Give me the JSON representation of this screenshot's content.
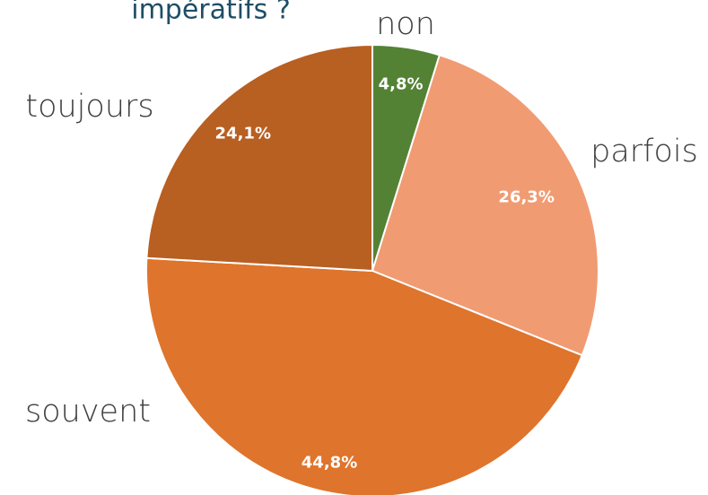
{
  "chart_data": {
    "type": "pie",
    "title": "impératifs ?",
    "categories": [
      "non",
      "parfois",
      "souvent",
      "toujours"
    ],
    "values": [
      4.8,
      26.3,
      44.8,
      24.1
    ],
    "value_labels": [
      "4,8%",
      "26,3%",
      "44,8%",
      "24,1%"
    ],
    "colors": [
      "#548235",
      "#f19b73",
      "#df742c",
      "#b85f22"
    ]
  }
}
